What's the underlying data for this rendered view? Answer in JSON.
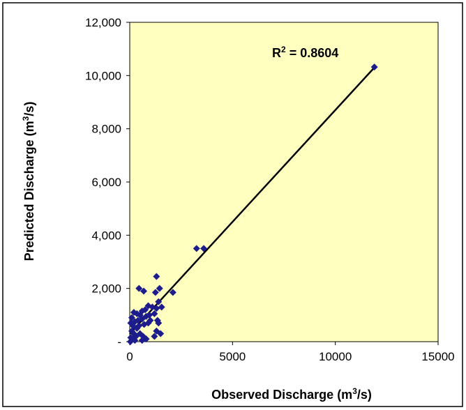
{
  "chart_data": {
    "type": "scatter",
    "x_label": [
      "Observed Discharge (m",
      "3",
      "/s)"
    ],
    "y_label": [
      "Predicted Discharge (m",
      "3",
      "/s)"
    ],
    "annotation": [
      "R",
      "2",
      " = 0.8604"
    ],
    "xlim": [
      0,
      15000
    ],
    "xticks": [
      0,
      5000,
      10000,
      15000
    ],
    "ylim": [
      0,
      12000
    ],
    "yticks": [
      {
        "value": 0,
        "label": "-"
      },
      {
        "value": 2000,
        "label": "2,000"
      },
      {
        "value": 4000,
        "label": "4,000"
      },
      {
        "value": 6000,
        "label": "6,000"
      },
      {
        "value": 8000,
        "label": "8,000"
      },
      {
        "value": 10000,
        "label": "10,000"
      },
      {
        "value": 12000,
        "label": "12,000"
      }
    ],
    "background": "#ffffc0",
    "series": [
      {
        "color": "#1c1c8c",
        "x": [
          11900,
          3250,
          3600,
          2100,
          1300,
          450,
          680,
          1450,
          1250,
          1400,
          1550,
          1300,
          1100,
          900,
          750,
          600,
          500,
          350,
          200,
          100,
          50,
          150,
          250,
          400,
          600,
          800,
          950,
          1200,
          1350,
          1400,
          1300,
          1500,
          1200,
          800,
          650,
          500,
          300,
          150,
          50,
          100,
          200,
          350,
          450,
          700,
          900,
          1000,
          30,
          600,
          250
        ],
        "y": [
          10320,
          3500,
          3500,
          1850,
          2450,
          2000,
          1900,
          2000,
          1850,
          1500,
          1300,
          1250,
          1300,
          1350,
          1200,
          1150,
          1000,
          1050,
          1100,
          900,
          700,
          600,
          750,
          800,
          850,
          950,
          1000,
          1050,
          800,
          700,
          400,
          300,
          200,
          100,
          200,
          300,
          200,
          100,
          150,
          400,
          300,
          500,
          600,
          650,
          700,
          800,
          0,
          50,
          50
        ]
      }
    ],
    "trendline": {
      "color": "#000000",
      "x": [
        0,
        11900
      ],
      "y": [
        300,
        10300
      ]
    }
  }
}
